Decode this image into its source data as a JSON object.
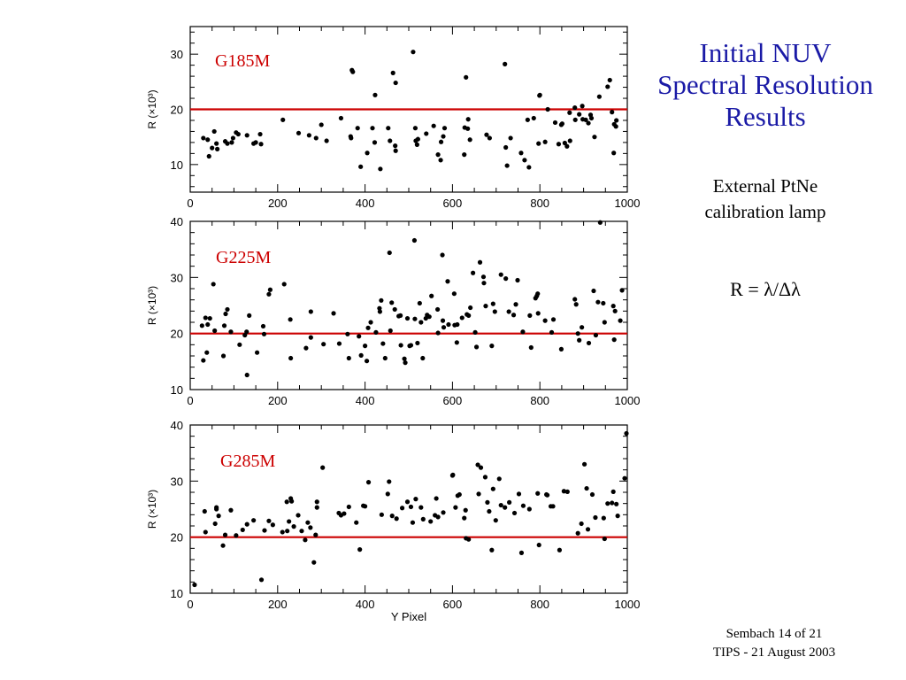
{
  "slide": {
    "title_lines": [
      "Initial NUV",
      "Spectral Resolution",
      "Results"
    ],
    "subtitle_lines": [
      "External PtNe",
      "calibration lamp"
    ],
    "formula": "R = λ/Δλ",
    "footer_lines": [
      "Sembach 14 of 21",
      "TIPS - 21 August 2003"
    ]
  },
  "colors": {
    "title": "#1a1aa6",
    "label": "#cc0000",
    "reference_line": "#cc0000",
    "points": "#000000"
  },
  "chart_data": [
    {
      "type": "scatter",
      "label": "G185M",
      "xlabel": "",
      "ylabel": "R (×10³)",
      "xlim": [
        0,
        1000
      ],
      "ylim": [
        5,
        35
      ],
      "xticks": [
        0,
        200,
        400,
        600,
        800,
        1000
      ],
      "yticks": [
        10,
        20,
        30
      ],
      "reference_y": 20,
      "points": [
        [
          30,
          14.8
        ],
        [
          40,
          14.5
        ],
        [
          43,
          11.5
        ],
        [
          50,
          13
        ],
        [
          55,
          16
        ],
        [
          60,
          13.8
        ],
        [
          62,
          12.8
        ],
        [
          80,
          14.2
        ],
        [
          85,
          13.8
        ],
        [
          95,
          14
        ],
        [
          98,
          14.8
        ],
        [
          105,
          15.8
        ],
        [
          110,
          15.5
        ],
        [
          130,
          15.3
        ],
        [
          145,
          13.8
        ],
        [
          150,
          14
        ],
        [
          160,
          15.5
        ],
        [
          162,
          13.7
        ],
        [
          212,
          18.1
        ],
        [
          248,
          15.7
        ],
        [
          272,
          15.3
        ],
        [
          288,
          14.8
        ],
        [
          300,
          17.2
        ],
        [
          312,
          14.3
        ],
        [
          345,
          18.4
        ],
        [
          367,
          15.1
        ],
        [
          368,
          14.8
        ],
        [
          370,
          27.1
        ],
        [
          372,
          26.8
        ],
        [
          383,
          16.6
        ],
        [
          390,
          9.6
        ],
        [
          405,
          12.1
        ],
        [
          417,
          16.6
        ],
        [
          422,
          14
        ],
        [
          423,
          22.6
        ],
        [
          435,
          9.2
        ],
        [
          453,
          16.6
        ],
        [
          457,
          14.3
        ],
        [
          464,
          26.6
        ],
        [
          469,
          13.4
        ],
        [
          470,
          24.8
        ],
        [
          470,
          12.5
        ],
        [
          510,
          30.4
        ],
        [
          515,
          16.6
        ],
        [
          516,
          14.3
        ],
        [
          519,
          13.6
        ],
        [
          521,
          14.6
        ],
        [
          540,
          15.6
        ],
        [
          557,
          17
        ],
        [
          567,
          11.8
        ],
        [
          573,
          10.8
        ],
        [
          574,
          14.1
        ],
        [
          579,
          15.1
        ],
        [
          582,
          16.6
        ],
        [
          627,
          11.8
        ],
        [
          628,
          16.7
        ],
        [
          631,
          25.8
        ],
        [
          635,
          16.5
        ],
        [
          636,
          18.2
        ],
        [
          640,
          14.5
        ],
        [
          678,
          15.4
        ],
        [
          685,
          14.8
        ],
        [
          720,
          28.2
        ],
        [
          722,
          13.1
        ],
        [
          725,
          9.8
        ],
        [
          733,
          14.8
        ],
        [
          757,
          12.1
        ],
        [
          765,
          10.8
        ],
        [
          772,
          18.1
        ],
        [
          775,
          9.5
        ],
        [
          786,
          18.4
        ],
        [
          797,
          13.8
        ],
        [
          799,
          22.5
        ],
        [
          800,
          22.6
        ],
        [
          812,
          14.1
        ],
        [
          818,
          20
        ],
        [
          835,
          17.6
        ],
        [
          843,
          13.7
        ],
        [
          849,
          17.2
        ],
        [
          851,
          17.4
        ],
        [
          857,
          13.9
        ],
        [
          862,
          13.3
        ],
        [
          868,
          19.4
        ],
        [
          869,
          14.3
        ],
        [
          880,
          20.3
        ],
        [
          881,
          18.1
        ],
        [
          890,
          19.1
        ],
        [
          897,
          20.6
        ],
        [
          898,
          18.2
        ],
        [
          905,
          18.1
        ],
        [
          911,
          17.5
        ],
        [
          916,
          19
        ],
        [
          918,
          18.4
        ],
        [
          925,
          15
        ],
        [
          936,
          22.3
        ],
        [
          955,
          24.1
        ],
        [
          960,
          25.3
        ],
        [
          965,
          19.5
        ],
        [
          969,
          12.1
        ],
        [
          970,
          17.3
        ],
        [
          974,
          16.9
        ],
        [
          975,
          18
        ]
      ]
    },
    {
      "type": "scatter",
      "label": "G225M",
      "xlabel": "",
      "ylabel": "R (×10³)",
      "xlim": [
        0,
        1000
      ],
      "ylim": [
        10,
        40
      ],
      "xticks": [
        0,
        200,
        400,
        600,
        800,
        1000
      ],
      "yticks": [
        10,
        20,
        30,
        40
      ],
      "reference_y": 20,
      "points": [
        [
          27,
          21.4
        ],
        [
          30,
          15.2
        ],
        [
          35,
          22.8
        ],
        [
          38,
          16.6
        ],
        [
          40,
          21.6
        ],
        [
          45,
          22.7
        ],
        [
          53,
          28.8
        ],
        [
          56,
          20.5
        ],
        [
          76,
          16
        ],
        [
          78,
          21.4
        ],
        [
          81,
          23.5
        ],
        [
          85,
          24.3
        ],
        [
          93,
          20.3
        ],
        [
          113,
          18
        ],
        [
          125,
          19.7
        ],
        [
          129,
          20.3
        ],
        [
          130,
          12.6
        ],
        [
          135,
          23.2
        ],
        [
          153,
          16.6
        ],
        [
          167,
          21.3
        ],
        [
          169,
          19.9
        ],
        [
          180,
          27
        ],
        [
          183,
          27.8
        ],
        [
          215,
          28.8
        ],
        [
          229,
          22.5
        ],
        [
          230,
          15.6
        ],
        [
          265,
          17.4
        ],
        [
          276,
          23.9
        ],
        [
          276,
          19.3
        ],
        [
          305,
          18.1
        ],
        [
          328,
          23.6
        ],
        [
          341,
          18.2
        ],
        [
          360,
          19.9
        ],
        [
          363,
          15.6
        ],
        [
          386,
          19.5
        ],
        [
          391,
          16.1
        ],
        [
          400,
          17.8
        ],
        [
          404,
          15.1
        ],
        [
          407,
          21
        ],
        [
          413,
          22
        ],
        [
          425,
          20.2
        ],
        [
          433,
          24.5
        ],
        [
          434,
          23.9
        ],
        [
          437,
          25.9
        ],
        [
          441,
          18.2
        ],
        [
          446,
          15.6
        ],
        [
          456,
          34.4
        ],
        [
          458,
          20.5
        ],
        [
          461,
          25.5
        ],
        [
          468,
          24.3
        ],
        [
          477,
          23.1
        ],
        [
          481,
          23.2
        ],
        [
          482,
          17.9
        ],
        [
          490,
          15.5
        ],
        [
          492,
          14.8
        ],
        [
          497,
          22.7
        ],
        [
          502,
          17.8
        ],
        [
          505,
          17.9
        ],
        [
          513,
          36.6
        ],
        [
          514,
          22.6
        ],
        [
          520,
          18.3
        ],
        [
          525,
          25.4
        ],
        [
          528,
          22
        ],
        [
          532,
          15.6
        ],
        [
          539,
          22.7
        ],
        [
          542,
          23.3
        ],
        [
          547,
          23
        ],
        [
          552,
          26.7
        ],
        [
          566,
          24.3
        ],
        [
          567,
          20.1
        ],
        [
          577,
          34
        ],
        [
          578,
          22.3
        ],
        [
          580,
          21.1
        ],
        [
          589,
          29.3
        ],
        [
          591,
          21.6
        ],
        [
          604,
          27.1
        ],
        [
          605,
          21.5
        ],
        [
          610,
          18.4
        ],
        [
          611,
          21.6
        ],
        [
          622,
          22.8
        ],
        [
          633,
          23.4
        ],
        [
          637,
          23.2
        ],
        [
          641,
          24.6
        ],
        [
          647,
          30.8
        ],
        [
          652,
          20.2
        ],
        [
          655,
          17.6
        ],
        [
          663,
          32.7
        ],
        [
          671,
          30.1
        ],
        [
          672,
          29
        ],
        [
          676,
          24.9
        ],
        [
          690,
          17.8
        ],
        [
          693,
          25.3
        ],
        [
          697,
          23.9
        ],
        [
          711,
          30.5
        ],
        [
          722,
          29.8
        ],
        [
          729,
          23.9
        ],
        [
          740,
          23.3
        ],
        [
          745,
          25.2
        ],
        [
          749,
          29.5
        ],
        [
          761,
          20.3
        ],
        [
          777,
          23.2
        ],
        [
          780,
          17.5
        ],
        [
          790,
          26.3
        ],
        [
          793,
          26.7
        ],
        [
          795,
          27.1
        ],
        [
          796,
          23.6
        ],
        [
          812,
          22.3
        ],
        [
          827,
          20.2
        ],
        [
          831,
          22.5
        ],
        [
          849,
          17.2
        ],
        [
          880,
          26.1
        ],
        [
          883,
          25.2
        ],
        [
          887,
          20
        ],
        [
          890,
          18.8
        ],
        [
          896,
          21.1
        ],
        [
          912,
          18.3
        ],
        [
          923,
          27.6
        ],
        [
          928,
          19.7
        ],
        [
          933,
          25.6
        ],
        [
          938,
          39.8
        ],
        [
          945,
          25.4
        ],
        [
          948,
          22
        ],
        [
          968,
          24.9
        ],
        [
          970,
          18.9
        ],
        [
          972,
          24
        ],
        [
          984,
          22.3
        ],
        [
          988,
          27.7
        ]
      ]
    },
    {
      "type": "scatter",
      "label": "G285M",
      "xlabel": "Y Pixel",
      "ylabel": "R (×10³)",
      "xlim": [
        0,
        1000
      ],
      "ylim": [
        10,
        40
      ],
      "xticks": [
        0,
        200,
        400,
        600,
        800,
        1000
      ],
      "yticks": [
        10,
        20,
        30,
        40
      ],
      "reference_y": 20,
      "points": [
        [
          10,
          11.5
        ],
        [
          33,
          24.6
        ],
        [
          35,
          20.9
        ],
        [
          57,
          22.4
        ],
        [
          60,
          25
        ],
        [
          60,
          25.3
        ],
        [
          65,
          23.8
        ],
        [
          75,
          18.5
        ],
        [
          80,
          20.4
        ],
        [
          93,
          24.8
        ],
        [
          105,
          20.3
        ],
        [
          120,
          21.3
        ],
        [
          130,
          22.3
        ],
        [
          145,
          23
        ],
        [
          163,
          12.4
        ],
        [
          170,
          21.2
        ],
        [
          180,
          22.9
        ],
        [
          189,
          22.2
        ],
        [
          211,
          20.9
        ],
        [
          221,
          26.3
        ],
        [
          222,
          21.1
        ],
        [
          226,
          22.8
        ],
        [
          230,
          26.9
        ],
        [
          232,
          26.4
        ],
        [
          237,
          21.9
        ],
        [
          247,
          23.9
        ],
        [
          255,
          21.1
        ],
        [
          263,
          19.5
        ],
        [
          269,
          22.6
        ],
        [
          275,
          21.7
        ],
        [
          283,
          15.5
        ],
        [
          287,
          20.4
        ],
        [
          290,
          26.3
        ],
        [
          290,
          25.3
        ],
        [
          303,
          32.4
        ],
        [
          340,
          24.3
        ],
        [
          345,
          23.9
        ],
        [
          352,
          24.2
        ],
        [
          363,
          25.4
        ],
        [
          380,
          22.6
        ],
        [
          388,
          17.8
        ],
        [
          396,
          25.6
        ],
        [
          400,
          25.5
        ],
        [
          408,
          29.8
        ],
        [
          438,
          24
        ],
        [
          452,
          27.7
        ],
        [
          455,
          29.9
        ],
        [
          462,
          23.8
        ],
        [
          472,
          23.3
        ],
        [
          485,
          25.2
        ],
        [
          497,
          26.3
        ],
        [
          505,
          25.4
        ],
        [
          509,
          22.6
        ],
        [
          516,
          26.8
        ],
        [
          528,
          25.3
        ],
        [
          533,
          23.2
        ],
        [
          550,
          22.8
        ],
        [
          560,
          23.9
        ],
        [
          563,
          26.9
        ],
        [
          567,
          23.6
        ],
        [
          579,
          24.4
        ],
        [
          600,
          31
        ],
        [
          601,
          31.1
        ],
        [
          607,
          25.3
        ],
        [
          612,
          27.4
        ],
        [
          616,
          27.6
        ],
        [
          627,
          23.4
        ],
        [
          630,
          24.8
        ],
        [
          631,
          19.8
        ],
        [
          637,
          19.6
        ],
        [
          658,
          32.9
        ],
        [
          660,
          27.7
        ],
        [
          665,
          32.4
        ],
        [
          675,
          30.7
        ],
        [
          680,
          26.2
        ],
        [
          684,
          24.6
        ],
        [
          690,
          17.7
        ],
        [
          693,
          28.6
        ],
        [
          699,
          23
        ],
        [
          707,
          30.4
        ],
        [
          711,
          25.7
        ],
        [
          720,
          25.3
        ],
        [
          730,
          26.2
        ],
        [
          742,
          24.3
        ],
        [
          752,
          27.7
        ],
        [
          758,
          17.2
        ],
        [
          762,
          25.6
        ],
        [
          776,
          25
        ],
        [
          795,
          27.8
        ],
        [
          798,
          18.6
        ],
        [
          815,
          27.6
        ],
        [
          817,
          27.5
        ],
        [
          825,
          25.5
        ],
        [
          830,
          25.5
        ],
        [
          845,
          17.7
        ],
        [
          855,
          28.2
        ],
        [
          863,
          28.1
        ],
        [
          887,
          20.7
        ],
        [
          895,
          22.4
        ],
        [
          902,
          33
        ],
        [
          907,
          28.7
        ],
        [
          910,
          21.4
        ],
        [
          920,
          27.6
        ],
        [
          927,
          23.5
        ],
        [
          946,
          23.4
        ],
        [
          948,
          19.7
        ],
        [
          955,
          26
        ],
        [
          965,
          26.1
        ],
        [
          968,
          28.1
        ],
        [
          975,
          25.9
        ],
        [
          978,
          23.8
        ],
        [
          994,
          30.5
        ],
        [
          998,
          38.5
        ]
      ]
    }
  ]
}
